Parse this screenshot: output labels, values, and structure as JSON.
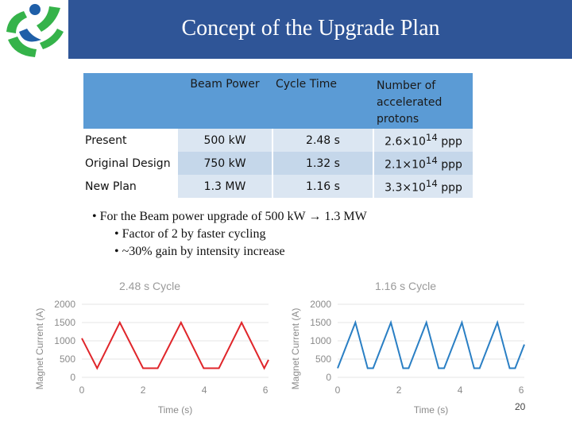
{
  "title": "Concept of the Upgrade Plan",
  "table": {
    "headers": [
      "",
      "Beam Power",
      "Cycle Time",
      "Number of accelerated protons"
    ],
    "rows": [
      {
        "label": "Present",
        "power": "500 kW",
        "cycle": "2.48 s",
        "protons_base": "2.6×10",
        "protons_exp": "14",
        "protons_unit": " ppp"
      },
      {
        "label": "Original Design",
        "power": "750 kW",
        "cycle": "1.32 s",
        "protons_base": "2.1×10",
        "protons_exp": "14",
        "protons_unit": " ppp"
      },
      {
        "label": "New Plan",
        "power": "1.3 MW",
        "cycle": "1.16 s",
        "protons_base": "3.3×10",
        "protons_exp": "14",
        "protons_unit": " ppp"
      }
    ]
  },
  "bullets": {
    "main": "For the Beam power upgrade of 500 kW → 1.3 MW",
    "sub": [
      "Factor of 2 by faster cycling",
      "~30% gain by intensity increase"
    ]
  },
  "chart_data": [
    {
      "type": "line",
      "title": "2.48 s Cycle",
      "xlabel": "Time (s)",
      "ylabel": "Magnet Current (A)",
      "xlim": [
        0,
        6.1
      ],
      "ylim": [
        0,
        2000
      ],
      "xticks": [
        0,
        2,
        4,
        6
      ],
      "yticks": [
        0,
        500,
        1000,
        1500,
        2000
      ],
      "color": "#e0262b",
      "series": [
        {
          "x": [
            0,
            0.5,
            1.24,
            2.0,
            2.48,
            3.24,
            3.98,
            4.48,
            5.22,
            5.96,
            6.1
          ],
          "y": [
            1070,
            250,
            1500,
            250,
            250,
            1500,
            250,
            250,
            1500,
            250,
            480
          ]
        }
      ]
    },
    {
      "type": "line",
      "title": "1.16 s Cycle",
      "xlabel": "Time (s)",
      "ylabel": "Magnet Current (A)",
      "xlim": [
        0,
        6.1
      ],
      "ylim": [
        0,
        2000
      ],
      "xticks": [
        0,
        2,
        4,
        6
      ],
      "yticks": [
        0,
        500,
        1000,
        1500,
        2000
      ],
      "color": "#2a7fc4",
      "series": [
        {
          "x": [
            0,
            0.58,
            0.98,
            1.16,
            1.74,
            2.14,
            2.32,
            2.9,
            3.3,
            3.48,
            4.06,
            4.46,
            4.64,
            5.22,
            5.62,
            5.8,
            6.1
          ],
          "y": [
            250,
            1500,
            250,
            250,
            1500,
            250,
            250,
            1500,
            250,
            250,
            1500,
            250,
            250,
            1500,
            250,
            250,
            900
          ]
        }
      ]
    }
  ],
  "page_number": "20",
  "colors": {
    "header": "#2f5597",
    "table_header": "#5b9bd5",
    "logo_blue": "#1f5fa8",
    "logo_green": "#35b34a"
  }
}
